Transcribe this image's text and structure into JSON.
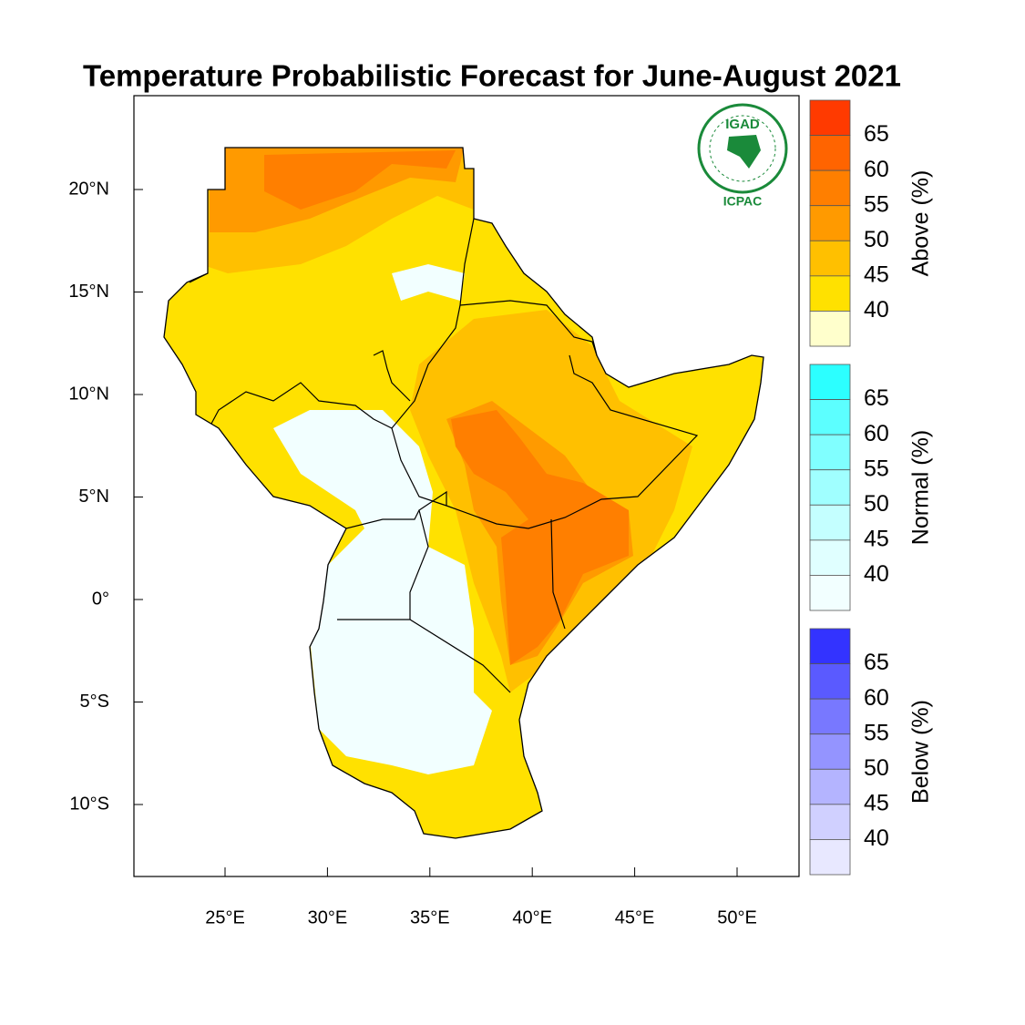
{
  "title": "Temperature Probabilistic Forecast for June-August 2021",
  "logo": {
    "top": "IGAD",
    "bottom": "ICPAC"
  },
  "lon_ticks": [
    {
      "value": 25,
      "label": "25°E"
    },
    {
      "value": 30,
      "label": "30°E"
    },
    {
      "value": 35,
      "label": "35°E"
    },
    {
      "value": 40,
      "label": "40°E"
    },
    {
      "value": 45,
      "label": "45°E"
    },
    {
      "value": 50,
      "label": "50°E"
    }
  ],
  "lat_ticks": [
    {
      "value": 20,
      "label": "20°N"
    },
    {
      "value": 15,
      "label": "15°N"
    },
    {
      "value": 10,
      "label": "10°N"
    },
    {
      "value": 5,
      "label": "5°N"
    },
    {
      "value": 0,
      "label": "0°"
    },
    {
      "value": -5,
      "label": "5°S"
    },
    {
      "value": -10,
      "label": "10°S"
    }
  ],
  "legends": [
    {
      "name": "Above (%)",
      "labels": [
        65,
        60,
        55,
        50,
        45,
        40
      ],
      "colors": [
        "#ff3a00",
        "#ff6400",
        "#ff7f00",
        "#ff9a00",
        "#ffc000",
        "#ffe100",
        "#ffffcc"
      ]
    },
    {
      "name": "Normal (%)",
      "labels": [
        65,
        60,
        55,
        50,
        45,
        40
      ],
      "colors": [
        "#2cffff",
        "#5cffff",
        "#80ffff",
        "#a0ffff",
        "#c4ffff",
        "#e0ffff",
        "#f2ffff"
      ]
    },
    {
      "name": "Below (%)",
      "labels": [
        65,
        60,
        55,
        50,
        45,
        40
      ],
      "colors": [
        "#3333ff",
        "#5a5aff",
        "#7878ff",
        "#9494ff",
        "#b4b4ff",
        "#d0d0ff",
        "#e8e8ff"
      ]
    }
  ]
}
